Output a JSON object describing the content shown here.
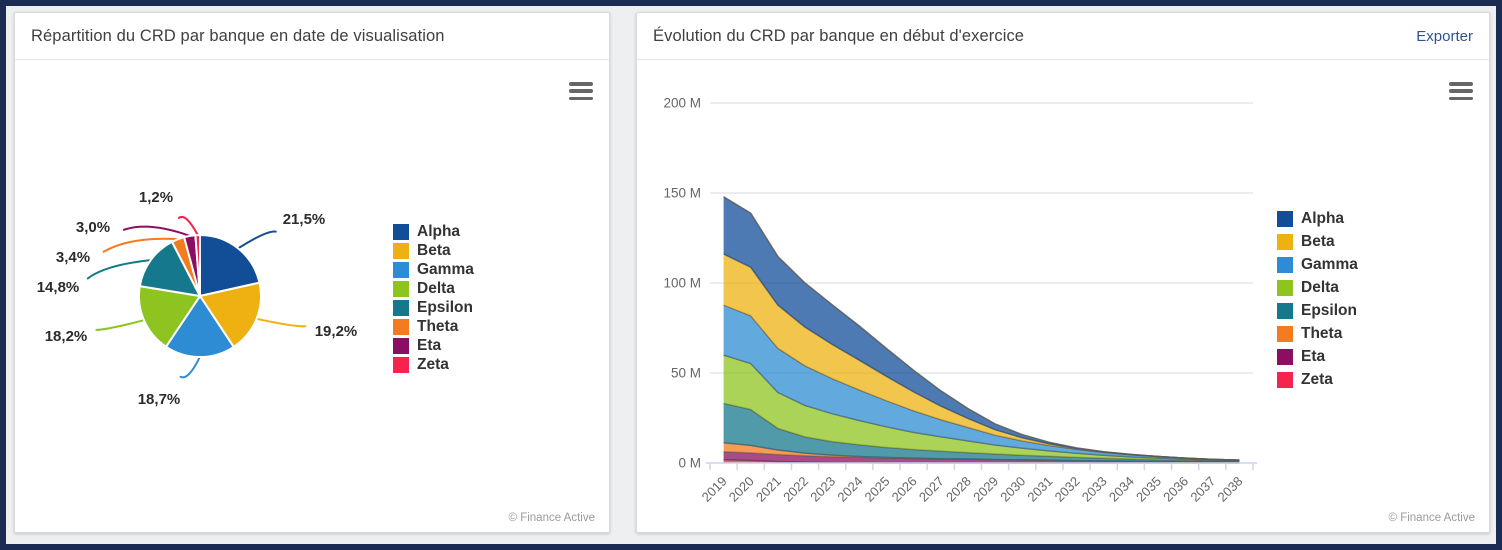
{
  "left_panel": {
    "title": "Répartition du CRD par banque en date de visualisation",
    "credit": "© Finance Active"
  },
  "right_panel": {
    "title": "Évolution du CRD par banque en début d'exercice",
    "export_label": "Exporter",
    "credit": "© Finance Active"
  },
  "icons": {
    "context_menu": "hamburger-menu-icon"
  },
  "palette": {
    "Alpha": "#124d98",
    "Beta": "#eeb111",
    "Gamma": "#2d8cd3",
    "Delta": "#8dc41f",
    "Epsilon": "#15788c",
    "Theta": "#f47b20",
    "Eta": "#8c0e63",
    "Zeta": "#f5234d"
  },
  "chart_data": [
    {
      "type": "pie",
      "title": "Répartition du CRD par banque en date de visualisation",
      "legend_position": "right",
      "slices": [
        {
          "name": "Alpha",
          "value": 21.5,
          "label": "21,5%",
          "color": "#124d98"
        },
        {
          "name": "Beta",
          "value": 19.2,
          "label": "19,2%",
          "color": "#eeb111"
        },
        {
          "name": "Gamma",
          "value": 18.7,
          "label": "18,7%",
          "color": "#2d8cd3"
        },
        {
          "name": "Delta",
          "value": 18.2,
          "label": "18,2%",
          "color": "#8dc41f"
        },
        {
          "name": "Epsilon",
          "value": 14.8,
          "label": "14,8%",
          "color": "#15788c"
        },
        {
          "name": "Theta",
          "value": 3.4,
          "label": "3,4%",
          "color": "#f47b20"
        },
        {
          "name": "Eta",
          "value": 3.0,
          "label": "3,0%",
          "color": "#8c0e63"
        },
        {
          "name": "Zeta",
          "value": 1.2,
          "label": "1,2%",
          "color": "#f5234d"
        }
      ]
    },
    {
      "type": "area",
      "stacked": true,
      "title": "Évolution du CRD par banque en début d'exercice",
      "unit": "M",
      "ylim": [
        0,
        200
      ],
      "y_ticks": [
        {
          "value": 0,
          "label": "0 M"
        },
        {
          "value": 50,
          "label": "50 M"
        },
        {
          "value": 100,
          "label": "100 M"
        },
        {
          "value": 150,
          "label": "150 M"
        },
        {
          "value": 200,
          "label": "200 M"
        }
      ],
      "grid": true,
      "legend_position": "right",
      "categories": [
        "2019",
        "2020",
        "2021",
        "2022",
        "2023",
        "2024",
        "2025",
        "2026",
        "2027",
        "2028",
        "2029",
        "2030",
        "2031",
        "2032",
        "2033",
        "2034",
        "2035",
        "2036",
        "2037",
        "2038"
      ],
      "stack_order_bottom_to_top": [
        "Zeta",
        "Eta",
        "Theta",
        "Epsilon",
        "Delta",
        "Gamma",
        "Beta",
        "Alpha"
      ],
      "series": [
        {
          "name": "Alpha",
          "color": "#124d98",
          "values": [
            31.8,
            30,
            27,
            24.5,
            22,
            19,
            15.5,
            12,
            8.5,
            5.5,
            3.2,
            1.8,
            0.9,
            0.4,
            0.2,
            0.1,
            0,
            0,
            0,
            0
          ]
        },
        {
          "name": "Beta",
          "color": "#eeb111",
          "values": [
            28.4,
            27,
            24,
            21.5,
            19,
            16.5,
            13.5,
            10.5,
            7.5,
            5,
            3,
            1.7,
            0.9,
            0.4,
            0.2,
            0.1,
            0,
            0,
            0,
            0
          ]
        },
        {
          "name": "Gamma",
          "color": "#2d8cd3",
          "values": [
            27.7,
            26.5,
            24.5,
            22,
            19.5,
            17,
            14.5,
            12,
            9.5,
            7.5,
            5.5,
            4,
            3,
            2.2,
            1.6,
            1.2,
            0.9,
            0.6,
            0.4,
            0.3
          ]
        },
        {
          "name": "Delta",
          "color": "#8dc41f",
          "values": [
            26.9,
            25.5,
            20,
            17.5,
            15.5,
            13.5,
            11.5,
            9.5,
            8,
            6.5,
            5,
            4,
            3,
            2.3,
            1.7,
            1.2,
            0.9,
            0.6,
            0.4,
            0.3
          ]
        },
        {
          "name": "Epsilon",
          "color": "#15788c",
          "values": [
            21.9,
            20,
            12,
            9,
            7.5,
            6.5,
            5.5,
            4.8,
            4.2,
            3.6,
            3.1,
            2.6,
            2.2,
            1.8,
            1.5,
            1.2,
            1,
            0.8,
            0.6,
            0.5
          ]
        },
        {
          "name": "Theta",
          "color": "#f47b20",
          "values": [
            5,
            4.2,
            2.5,
            1.5,
            0.9,
            0.5,
            0.3,
            0.2,
            0.1,
            0.1,
            0,
            0,
            0,
            0,
            0,
            0,
            0,
            0,
            0,
            0
          ]
        },
        {
          "name": "Eta",
          "color": "#8c0e63",
          "values": [
            4.4,
            4.2,
            3.9,
            3.6,
            3.3,
            3,
            2.8,
            2.5,
            2.3,
            2.1,
            1.9,
            1.7,
            1.5,
            1.3,
            1.1,
            1,
            0.8,
            0.7,
            0.6,
            0.5
          ]
        },
        {
          "name": "Zeta",
          "color": "#f5234d",
          "values": [
            1.8,
            1.4,
            0.8,
            0.4,
            0.2,
            0.1,
            0,
            0,
            0,
            0,
            0,
            0,
            0,
            0,
            0,
            0,
            0,
            0,
            0,
            0
          ]
        }
      ]
    }
  ]
}
